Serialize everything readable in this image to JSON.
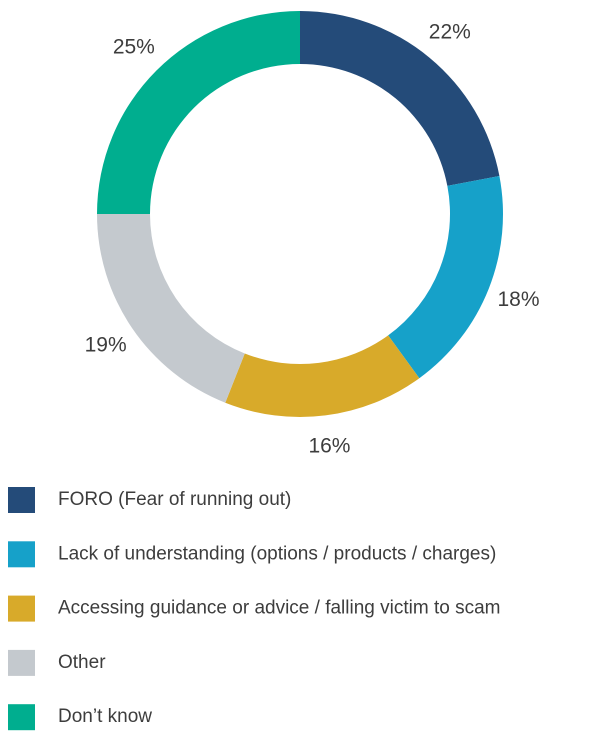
{
  "chart_data": {
    "type": "donut",
    "categories": [
      "FORO (Fear of running out)",
      "Lack of understanding (options / products / charges)",
      "Accessing guidance or advice / falling victim to scam",
      "Other",
      "Don’t know"
    ],
    "values": [
      22,
      18,
      16,
      19,
      25
    ],
    "value_labels": [
      "22%",
      "18%",
      "16%",
      "19%",
      "25%"
    ],
    "colors": [
      "#244b79",
      "#16a1c9",
      "#d8aa2a",
      "#c4c9ce",
      "#00ae8f"
    ]
  }
}
